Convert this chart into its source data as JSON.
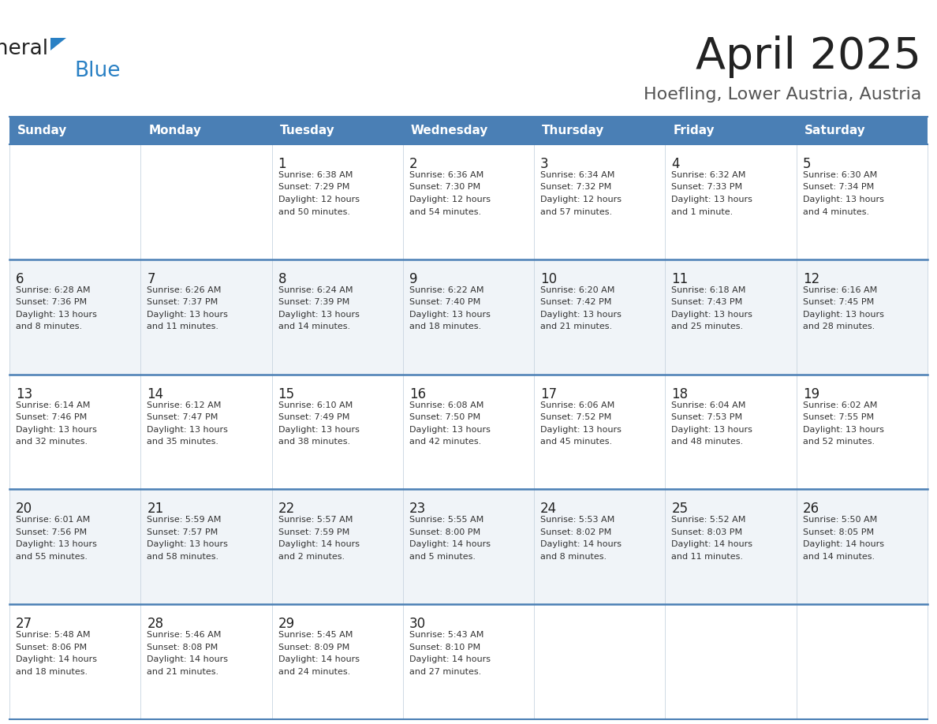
{
  "title": "April 2025",
  "subtitle": "Hoefling, Lower Austria, Austria",
  "header_color": "#4a7fb5",
  "header_text_color": "#ffffff",
  "day_headers": [
    "Sunday",
    "Monday",
    "Tuesday",
    "Wednesday",
    "Thursday",
    "Friday",
    "Saturday"
  ],
  "weeks": [
    [
      {
        "day": null,
        "info": null
      },
      {
        "day": null,
        "info": null
      },
      {
        "day": 1,
        "info": "Sunrise: 6:38 AM\nSunset: 7:29 PM\nDaylight: 12 hours\nand 50 minutes."
      },
      {
        "day": 2,
        "info": "Sunrise: 6:36 AM\nSunset: 7:30 PM\nDaylight: 12 hours\nand 54 minutes."
      },
      {
        "day": 3,
        "info": "Sunrise: 6:34 AM\nSunset: 7:32 PM\nDaylight: 12 hours\nand 57 minutes."
      },
      {
        "day": 4,
        "info": "Sunrise: 6:32 AM\nSunset: 7:33 PM\nDaylight: 13 hours\nand 1 minute."
      },
      {
        "day": 5,
        "info": "Sunrise: 6:30 AM\nSunset: 7:34 PM\nDaylight: 13 hours\nand 4 minutes."
      }
    ],
    [
      {
        "day": 6,
        "info": "Sunrise: 6:28 AM\nSunset: 7:36 PM\nDaylight: 13 hours\nand 8 minutes."
      },
      {
        "day": 7,
        "info": "Sunrise: 6:26 AM\nSunset: 7:37 PM\nDaylight: 13 hours\nand 11 minutes."
      },
      {
        "day": 8,
        "info": "Sunrise: 6:24 AM\nSunset: 7:39 PM\nDaylight: 13 hours\nand 14 minutes."
      },
      {
        "day": 9,
        "info": "Sunrise: 6:22 AM\nSunset: 7:40 PM\nDaylight: 13 hours\nand 18 minutes."
      },
      {
        "day": 10,
        "info": "Sunrise: 6:20 AM\nSunset: 7:42 PM\nDaylight: 13 hours\nand 21 minutes."
      },
      {
        "day": 11,
        "info": "Sunrise: 6:18 AM\nSunset: 7:43 PM\nDaylight: 13 hours\nand 25 minutes."
      },
      {
        "day": 12,
        "info": "Sunrise: 6:16 AM\nSunset: 7:45 PM\nDaylight: 13 hours\nand 28 minutes."
      }
    ],
    [
      {
        "day": 13,
        "info": "Sunrise: 6:14 AM\nSunset: 7:46 PM\nDaylight: 13 hours\nand 32 minutes."
      },
      {
        "day": 14,
        "info": "Sunrise: 6:12 AM\nSunset: 7:47 PM\nDaylight: 13 hours\nand 35 minutes."
      },
      {
        "day": 15,
        "info": "Sunrise: 6:10 AM\nSunset: 7:49 PM\nDaylight: 13 hours\nand 38 minutes."
      },
      {
        "day": 16,
        "info": "Sunrise: 6:08 AM\nSunset: 7:50 PM\nDaylight: 13 hours\nand 42 minutes."
      },
      {
        "day": 17,
        "info": "Sunrise: 6:06 AM\nSunset: 7:52 PM\nDaylight: 13 hours\nand 45 minutes."
      },
      {
        "day": 18,
        "info": "Sunrise: 6:04 AM\nSunset: 7:53 PM\nDaylight: 13 hours\nand 48 minutes."
      },
      {
        "day": 19,
        "info": "Sunrise: 6:02 AM\nSunset: 7:55 PM\nDaylight: 13 hours\nand 52 minutes."
      }
    ],
    [
      {
        "day": 20,
        "info": "Sunrise: 6:01 AM\nSunset: 7:56 PM\nDaylight: 13 hours\nand 55 minutes."
      },
      {
        "day": 21,
        "info": "Sunrise: 5:59 AM\nSunset: 7:57 PM\nDaylight: 13 hours\nand 58 minutes."
      },
      {
        "day": 22,
        "info": "Sunrise: 5:57 AM\nSunset: 7:59 PM\nDaylight: 14 hours\nand 2 minutes."
      },
      {
        "day": 23,
        "info": "Sunrise: 5:55 AM\nSunset: 8:00 PM\nDaylight: 14 hours\nand 5 minutes."
      },
      {
        "day": 24,
        "info": "Sunrise: 5:53 AM\nSunset: 8:02 PM\nDaylight: 14 hours\nand 8 minutes."
      },
      {
        "day": 25,
        "info": "Sunrise: 5:52 AM\nSunset: 8:03 PM\nDaylight: 14 hours\nand 11 minutes."
      },
      {
        "day": 26,
        "info": "Sunrise: 5:50 AM\nSunset: 8:05 PM\nDaylight: 14 hours\nand 14 minutes."
      }
    ],
    [
      {
        "day": 27,
        "info": "Sunrise: 5:48 AM\nSunset: 8:06 PM\nDaylight: 14 hours\nand 18 minutes."
      },
      {
        "day": 28,
        "info": "Sunrise: 5:46 AM\nSunset: 8:08 PM\nDaylight: 14 hours\nand 21 minutes."
      },
      {
        "day": 29,
        "info": "Sunrise: 5:45 AM\nSunset: 8:09 PM\nDaylight: 14 hours\nand 24 minutes."
      },
      {
        "day": 30,
        "info": "Sunrise: 5:43 AM\nSunset: 8:10 PM\nDaylight: 14 hours\nand 27 minutes."
      },
      {
        "day": null,
        "info": null
      },
      {
        "day": null,
        "info": null
      },
      {
        "day": null,
        "info": null
      }
    ]
  ],
  "cell_bg_even": "#ffffff",
  "cell_bg_odd": "#f0f4f8",
  "separator_color": "#4a7fb5",
  "text_color": "#333333",
  "day_num_color": "#222222",
  "logo_general_color": "#222222",
  "logo_blue_color": "#2980c4",
  "title_color": "#222222",
  "subtitle_color": "#555555"
}
